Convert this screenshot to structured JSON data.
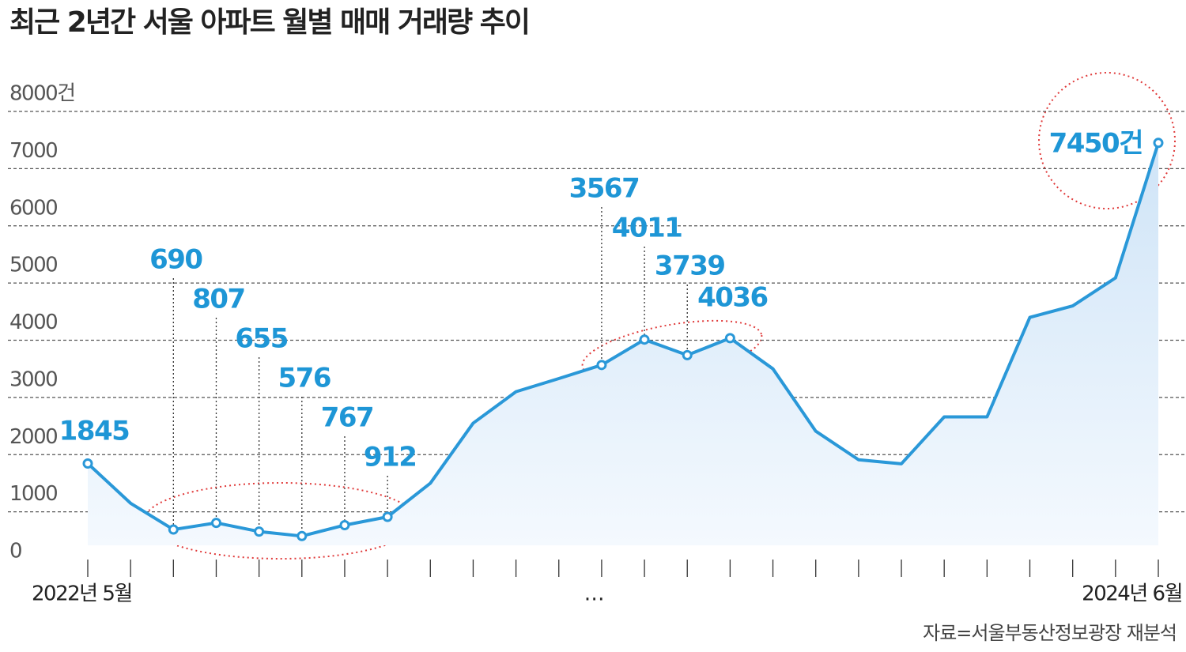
{
  "chart_data": {
    "type": "line",
    "title": "최근 2년간 서울 아파트 월별 매매 거래량 추이",
    "source": "자료=서울부동산정보광장 재분석",
    "categories": [
      "2022년 5월",
      null,
      null,
      null,
      null,
      null,
      null,
      null,
      null,
      null,
      null,
      null,
      "…",
      null,
      null,
      null,
      null,
      null,
      null,
      null,
      null,
      null,
      null,
      null,
      null,
      "2024년 6월"
    ],
    "series": [
      {
        "name": "거래량",
        "color": "#2a98d8",
        "values": [
          1845,
          1150,
          690,
          807,
          655,
          576,
          767,
          912,
          1500,
          2550,
          3100,
          3330,
          3567,
          4011,
          3739,
          4036,
          3500,
          2410,
          1910,
          1840,
          2660,
          2660,
          4400,
          4600,
          5090,
          7450
        ],
        "value_labels": [
          "1845",
          null,
          "690",
          "807",
          "655",
          "576",
          "767",
          "912",
          null,
          null,
          null,
          null,
          "3567",
          "4011",
          "3739",
          "4036",
          null,
          null,
          null,
          null,
          null,
          null,
          null,
          null,
          null,
          "7450건"
        ]
      }
    ],
    "ylim": [
      0,
      8000
    ],
    "yticks": [
      0,
      1000,
      2000,
      3000,
      4000,
      5000,
      6000,
      7000,
      {
        "value": 8000,
        "label": "8000건"
      }
    ],
    "grid": true
  }
}
